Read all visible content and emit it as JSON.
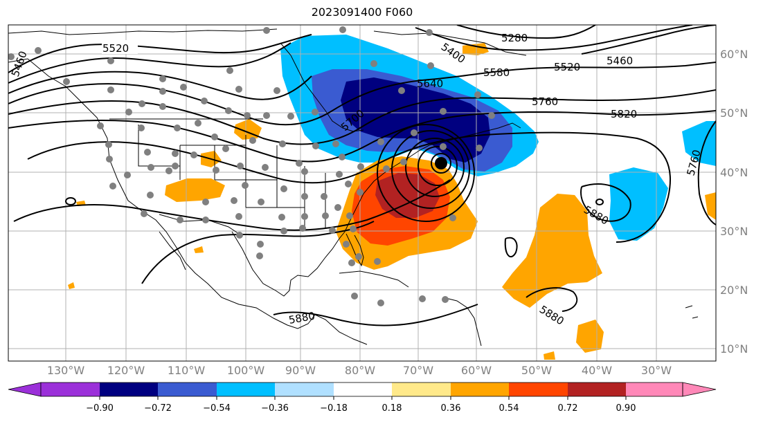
{
  "title": "2023091400 F060",
  "map": {
    "lon_labels": [
      "130°W",
      "120°W",
      "110°W",
      "100°W",
      "90°W",
      "80°W",
      "70°W",
      "60°W",
      "50°W",
      "40°W",
      "30°W"
    ],
    "lat_labels": [
      "60°N",
      "50°N",
      "40°N",
      "30°N",
      "20°N",
      "10°N"
    ],
    "contour_labels": [
      "5520",
      "5580",
      "5280",
      "5460",
      "5640",
      "5760",
      "5820",
      "5700",
      "5760",
      "5880",
      "5880",
      "5880",
      "5460",
      "5520",
      "5400"
    ],
    "colors": {
      "c_-0.90": "#9b30d9",
      "c_-0.72": "#000080",
      "c_-0.54": "#3a5bd1",
      "c_-0.36": "#00bfff",
      "c_-0.18": "#b0e0ff",
      "c_0.18": "#ffffff",
      "c_0.36": "#ffe98a",
      "c_0.54": "#ffa500",
      "c_0.72": "#ff4500",
      "c_0.90": "#b22222",
      "c_over": "#ff88b8"
    }
  },
  "colorbar": {
    "ticks": [
      "−0.90",
      "−0.72",
      "−0.54",
      "−0.36",
      "−0.18",
      "0.18",
      "0.36",
      "0.54",
      "0.72",
      "0.90"
    ],
    "colors": [
      "#9b30d9",
      "#000080",
      "#3a5bd1",
      "#00bfff",
      "#b0e0ff",
      "#ffffff",
      "#ffe98a",
      "#ffa500",
      "#ff4500",
      "#b22222",
      "#ff88b8"
    ]
  }
}
